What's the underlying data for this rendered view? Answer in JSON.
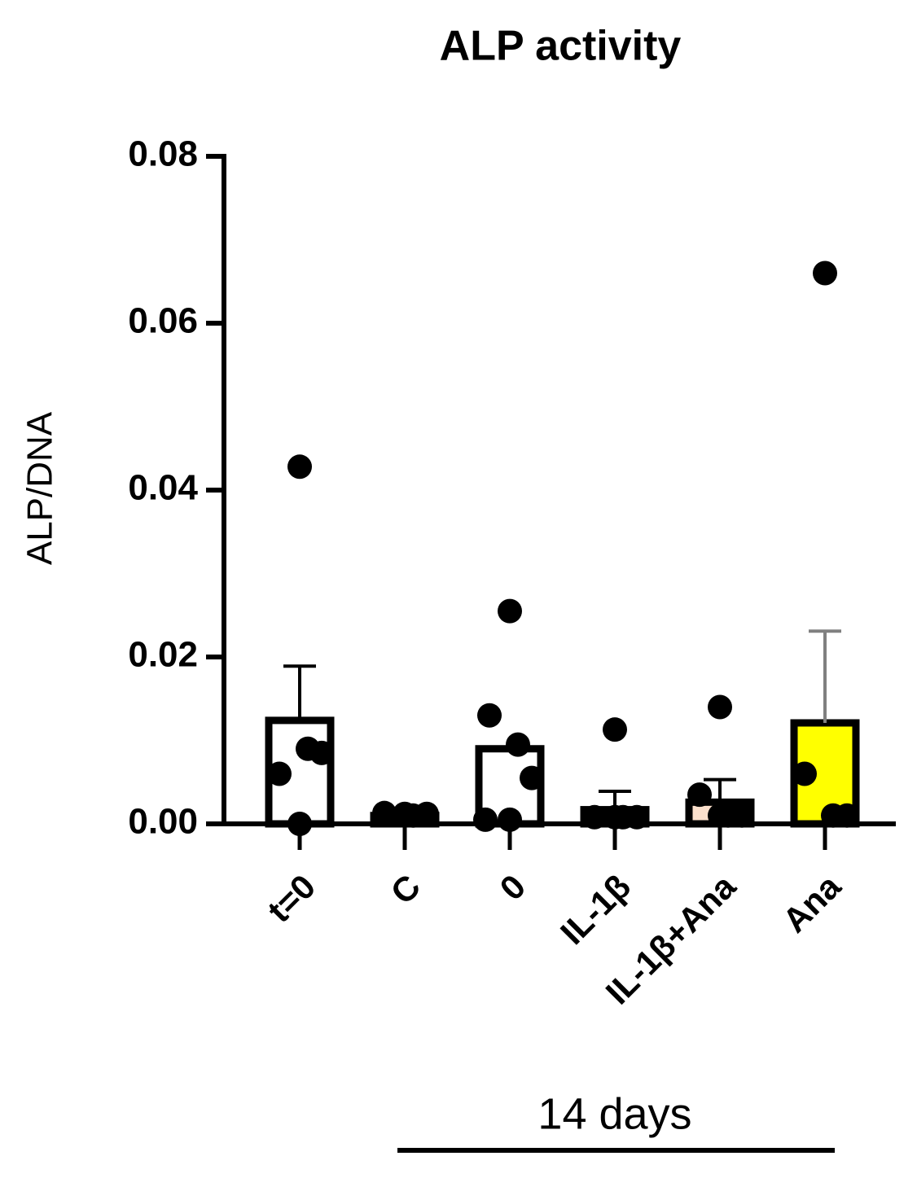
{
  "chart_data": {
    "type": "bar",
    "title": "ALP activity",
    "y_label": "ALP/DNA",
    "categories": [
      "t=0",
      "C",
      "0",
      "IL-1β",
      "IL-1β+Ana",
      "Ana"
    ],
    "values": [
      0.0124,
      0.001,
      0.009,
      0.0017,
      0.0026,
      0.0121
    ],
    "errors": [
      0.0065,
      0,
      0,
      0.0022,
      0.0027,
      0.011
    ],
    "colors": [
      "#ffffff",
      "#ffffff",
      "#ffffff",
      "#f4c7c3",
      "#fbe0cc",
      "#ffff00"
    ],
    "error_colors": [
      "#000000",
      "#000000",
      "#000000",
      "#000000",
      "#000000",
      "#808080"
    ],
    "points": [
      [
        0.0428,
        0.006,
        0.009,
        0.0085,
        0
      ],
      [
        0.0012,
        0.0013,
        0.001,
        0.0012,
        0.0011
      ],
      [
        0.0255,
        0.013,
        0.0095,
        0.0055,
        0.0005,
        0.0005
      ],
      [
        0.0113,
        0.0008,
        0.0008,
        0.0008,
        0.0008
      ],
      [
        0.014,
        0.0035,
        0.001,
        0.001,
        0.001
      ],
      [
        0.066,
        0.006,
        0.001,
        0.001
      ]
    ],
    "ylim": [
      0,
      0.08
    ],
    "yticks": [
      {
        "value": 0,
        "label": "0.00"
      },
      0.02,
      0.04,
      0.06,
      0.08
    ],
    "group_label": "14 days"
  }
}
